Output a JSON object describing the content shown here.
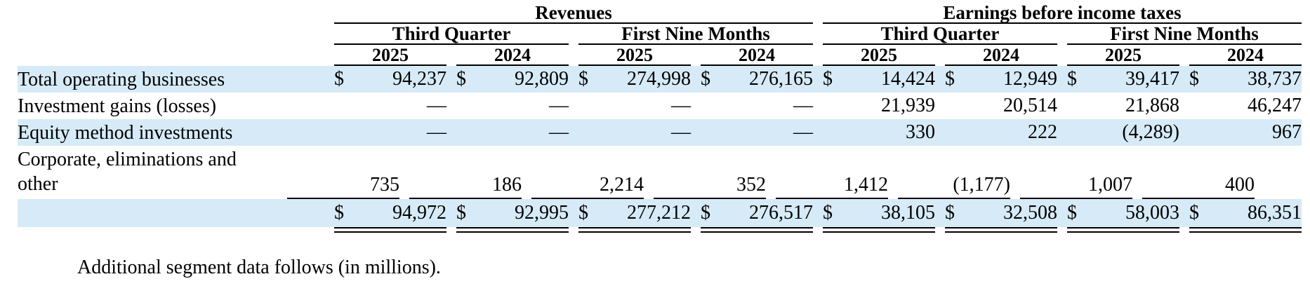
{
  "table": {
    "currency_symbol": "$",
    "group_headers": [
      {
        "label": "Revenues"
      },
      {
        "label": "Earnings before income taxes"
      }
    ],
    "period_headers": [
      "Third Quarter",
      "First Nine Months",
      "Third Quarter",
      "First Nine Months"
    ],
    "year_headers": [
      "2025",
      "2024",
      "2025",
      "2024",
      "2025",
      "2024",
      "2025",
      "2024"
    ],
    "rows": [
      {
        "label": "Total operating businesses",
        "currency": true,
        "values": [
          "94,237",
          "92,809",
          "274,998",
          "276,165",
          "14,424",
          "12,949",
          "39,417",
          "38,737"
        ]
      },
      {
        "label": "Investment gains (losses)",
        "currency": false,
        "values": [
          "—",
          "—",
          "—",
          "—",
          "21,939",
          "20,514",
          "21,868",
          "46,247"
        ]
      },
      {
        "label": "Equity method investments",
        "currency": false,
        "values": [
          "—",
          "—",
          "—",
          "—",
          "330",
          "222",
          "(4,289)",
          "967"
        ]
      },
      {
        "label": "Corporate, eliminations and other",
        "currency": false,
        "values": [
          "735",
          "186",
          "2,214",
          "352",
          "1,412",
          "(1,177)",
          "1,007",
          "400"
        ]
      }
    ],
    "total_row": {
      "currency": true,
      "values": [
        "94,972",
        "92,995",
        "277,212",
        "276,517",
        "38,105",
        "32,508",
        "58,003",
        "86,351"
      ]
    }
  },
  "footer": {
    "note": "Additional segment data follows (in millions)."
  },
  "colors": {
    "stripe": "#d6ebf7",
    "text": "#000000",
    "rule": "#000000"
  }
}
